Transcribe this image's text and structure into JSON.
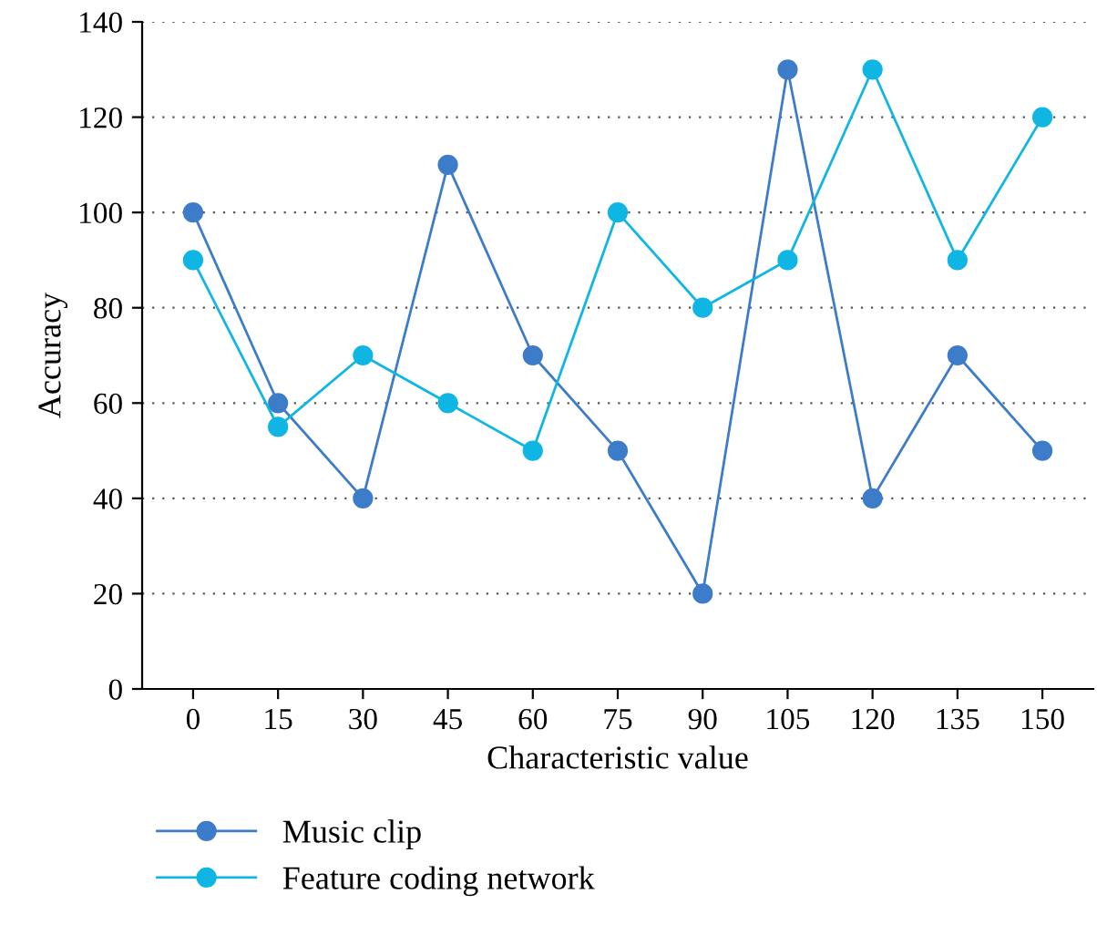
{
  "chart_data": {
    "type": "line",
    "xlabel": "Characteristic value",
    "ylabel": "Accuracy",
    "categories": [
      "0",
      "15",
      "30",
      "45",
      "60",
      "75",
      "90",
      "105",
      "120",
      "135",
      "150"
    ],
    "series": [
      {
        "name": "Music clip",
        "color": "#3d7cc9",
        "values": [
          100,
          60,
          40,
          110,
          70,
          50,
          20,
          130,
          40,
          70,
          50
        ]
      },
      {
        "name": "Feature coding network",
        "color": "#10b6e3",
        "values": [
          90,
          55,
          70,
          60,
          50,
          100,
          80,
          90,
          130,
          90,
          120
        ]
      }
    ],
    "ylim": [
      0,
      140
    ],
    "yticks": [
      0,
      20,
      40,
      60,
      80,
      100,
      120,
      140
    ],
    "grid": "y",
    "legend": "bottom left",
    "marker": "circle",
    "line_style": "solid"
  }
}
